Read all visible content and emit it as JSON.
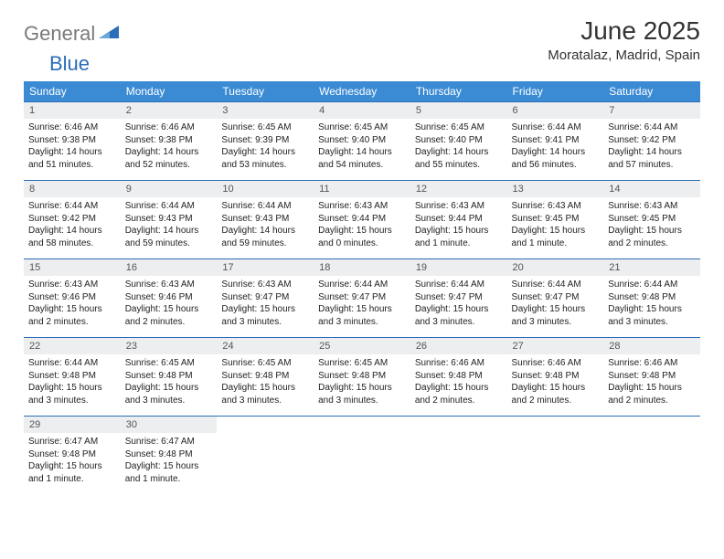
{
  "logo": {
    "grey": "General",
    "blue": "Blue"
  },
  "title": "June 2025",
  "location": "Moratalaz, Madrid, Spain",
  "colors": {
    "header_bg": "#3b8bd4",
    "header_text": "#ffffff",
    "row_border": "#2a6db8",
    "daynum_bg": "#eceeef",
    "logo_grey": "#7a7a7a",
    "logo_blue": "#2a6db8"
  },
  "days_of_week": [
    "Sunday",
    "Monday",
    "Tuesday",
    "Wednesday",
    "Thursday",
    "Friday",
    "Saturday"
  ],
  "weeks": [
    [
      {
        "n": "1",
        "sr": "6:46 AM",
        "ss": "9:38 PM",
        "dl": "14 hours and 51 minutes."
      },
      {
        "n": "2",
        "sr": "6:46 AM",
        "ss": "9:38 PM",
        "dl": "14 hours and 52 minutes."
      },
      {
        "n": "3",
        "sr": "6:45 AM",
        "ss": "9:39 PM",
        "dl": "14 hours and 53 minutes."
      },
      {
        "n": "4",
        "sr": "6:45 AM",
        "ss": "9:40 PM",
        "dl": "14 hours and 54 minutes."
      },
      {
        "n": "5",
        "sr": "6:45 AM",
        "ss": "9:40 PM",
        "dl": "14 hours and 55 minutes."
      },
      {
        "n": "6",
        "sr": "6:44 AM",
        "ss": "9:41 PM",
        "dl": "14 hours and 56 minutes."
      },
      {
        "n": "7",
        "sr": "6:44 AM",
        "ss": "9:42 PM",
        "dl": "14 hours and 57 minutes."
      }
    ],
    [
      {
        "n": "8",
        "sr": "6:44 AM",
        "ss": "9:42 PM",
        "dl": "14 hours and 58 minutes."
      },
      {
        "n": "9",
        "sr": "6:44 AM",
        "ss": "9:43 PM",
        "dl": "14 hours and 59 minutes."
      },
      {
        "n": "10",
        "sr": "6:44 AM",
        "ss": "9:43 PM",
        "dl": "14 hours and 59 minutes."
      },
      {
        "n": "11",
        "sr": "6:43 AM",
        "ss": "9:44 PM",
        "dl": "15 hours and 0 minutes."
      },
      {
        "n": "12",
        "sr": "6:43 AM",
        "ss": "9:44 PM",
        "dl": "15 hours and 1 minute."
      },
      {
        "n": "13",
        "sr": "6:43 AM",
        "ss": "9:45 PM",
        "dl": "15 hours and 1 minute."
      },
      {
        "n": "14",
        "sr": "6:43 AM",
        "ss": "9:45 PM",
        "dl": "15 hours and 2 minutes."
      }
    ],
    [
      {
        "n": "15",
        "sr": "6:43 AM",
        "ss": "9:46 PM",
        "dl": "15 hours and 2 minutes."
      },
      {
        "n": "16",
        "sr": "6:43 AM",
        "ss": "9:46 PM",
        "dl": "15 hours and 2 minutes."
      },
      {
        "n": "17",
        "sr": "6:43 AM",
        "ss": "9:47 PM",
        "dl": "15 hours and 3 minutes."
      },
      {
        "n": "18",
        "sr": "6:44 AM",
        "ss": "9:47 PM",
        "dl": "15 hours and 3 minutes."
      },
      {
        "n": "19",
        "sr": "6:44 AM",
        "ss": "9:47 PM",
        "dl": "15 hours and 3 minutes."
      },
      {
        "n": "20",
        "sr": "6:44 AM",
        "ss": "9:47 PM",
        "dl": "15 hours and 3 minutes."
      },
      {
        "n": "21",
        "sr": "6:44 AM",
        "ss": "9:48 PM",
        "dl": "15 hours and 3 minutes."
      }
    ],
    [
      {
        "n": "22",
        "sr": "6:44 AM",
        "ss": "9:48 PM",
        "dl": "15 hours and 3 minutes."
      },
      {
        "n": "23",
        "sr": "6:45 AM",
        "ss": "9:48 PM",
        "dl": "15 hours and 3 minutes."
      },
      {
        "n": "24",
        "sr": "6:45 AM",
        "ss": "9:48 PM",
        "dl": "15 hours and 3 minutes."
      },
      {
        "n": "25",
        "sr": "6:45 AM",
        "ss": "9:48 PM",
        "dl": "15 hours and 3 minutes."
      },
      {
        "n": "26",
        "sr": "6:46 AM",
        "ss": "9:48 PM",
        "dl": "15 hours and 2 minutes."
      },
      {
        "n": "27",
        "sr": "6:46 AM",
        "ss": "9:48 PM",
        "dl": "15 hours and 2 minutes."
      },
      {
        "n": "28",
        "sr": "6:46 AM",
        "ss": "9:48 PM",
        "dl": "15 hours and 2 minutes."
      }
    ],
    [
      {
        "n": "29",
        "sr": "6:47 AM",
        "ss": "9:48 PM",
        "dl": "15 hours and 1 minute."
      },
      {
        "n": "30",
        "sr": "6:47 AM",
        "ss": "9:48 PM",
        "dl": "15 hours and 1 minute."
      },
      null,
      null,
      null,
      null,
      null
    ]
  ],
  "labels": {
    "sunrise": "Sunrise:",
    "sunset": "Sunset:",
    "daylight": "Daylight:"
  }
}
